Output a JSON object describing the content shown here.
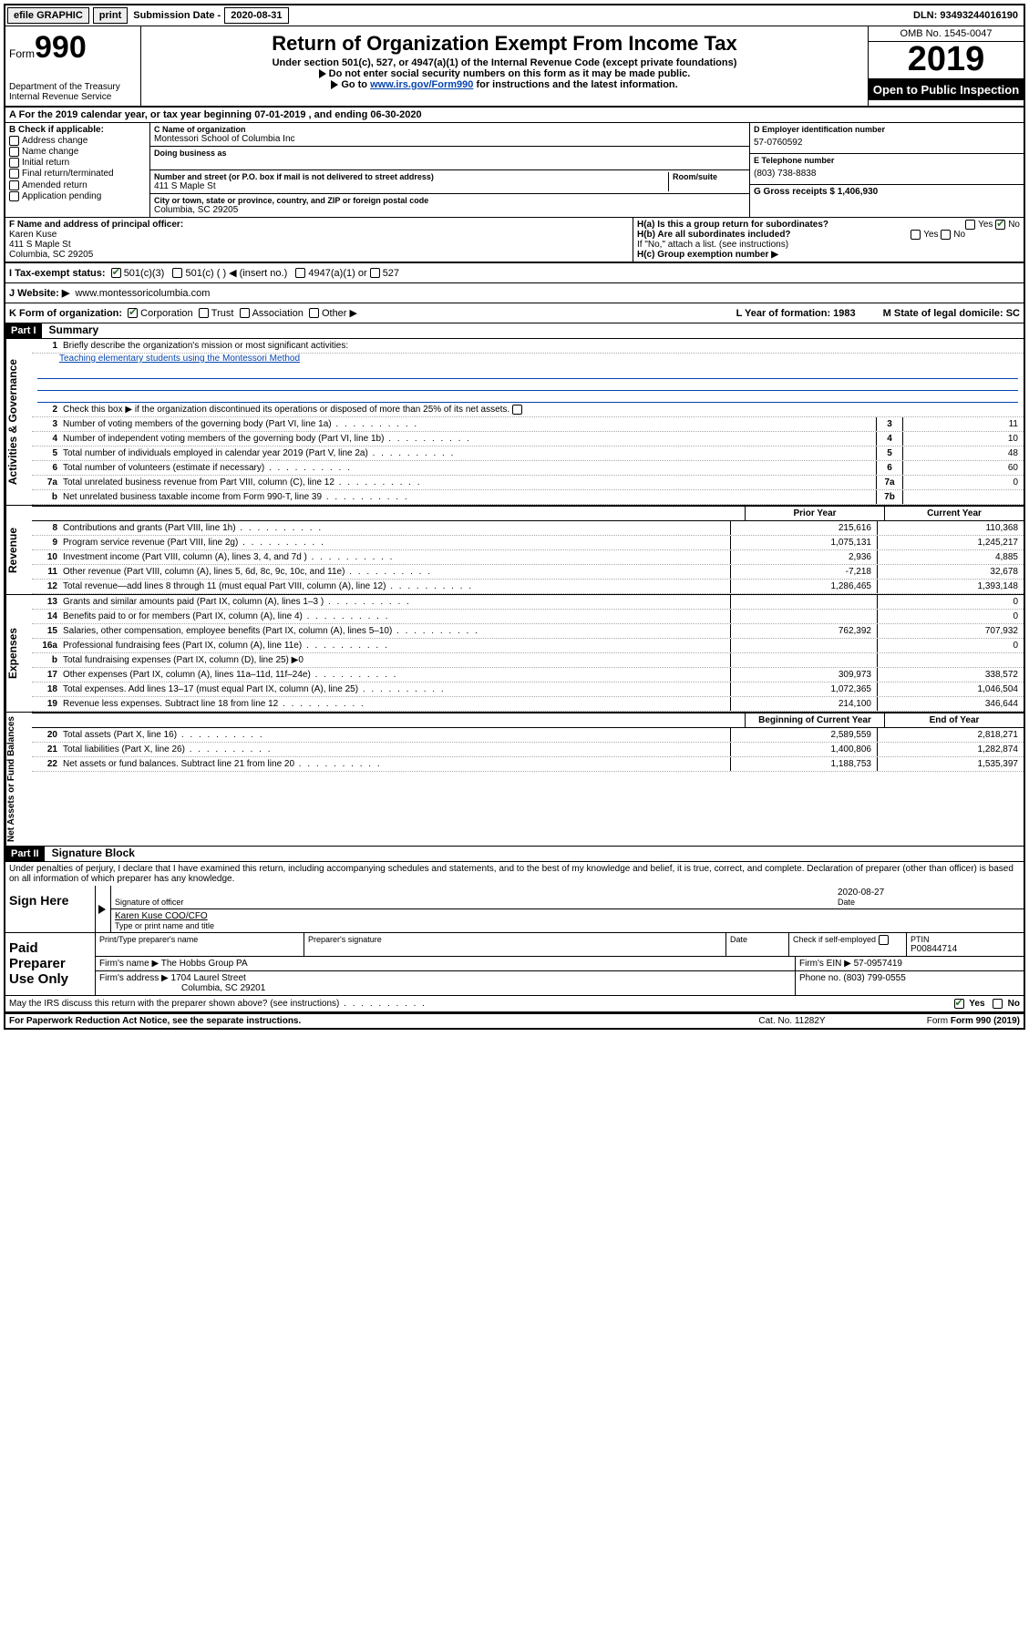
{
  "topbar": {
    "efile": "efile GRAPHIC",
    "print": "print",
    "subDateLabel": "Submission Date - ",
    "subDate": "2020-08-31",
    "dlnLabel": "DLN: ",
    "dln": "93493244016190"
  },
  "header": {
    "formWord": "Form",
    "formNum": "990",
    "dept": "Department of the Treasury\nInternal Revenue Service",
    "title": "Return of Organization Exempt From Income Tax",
    "sub1": "Under section 501(c), 527, or 4947(a)(1) of the Internal Revenue Code (except private foundations)",
    "sub2": "Do not enter social security numbers on this form as it may be made public.",
    "sub3pre": "Go to ",
    "sub3link": "www.irs.gov/Form990",
    "sub3post": " for instructions and the latest information.",
    "omb": "OMB No. 1545-0047",
    "year": "2019",
    "openpub": "Open to Public Inspection"
  },
  "rowA": "A For the 2019 calendar year, or tax year beginning 07-01-2019     , and ending 06-30-2020",
  "colB": {
    "head": "B Check if applicable:",
    "items": [
      "Address change",
      "Name change",
      "Initial return",
      "Final return/terminated",
      "Amended return",
      "Application pending"
    ]
  },
  "C": {
    "nameLab": "C Name of organization",
    "name": "Montessori School of Columbia Inc",
    "dbaLab": "Doing business as",
    "addrLab": "Number and street (or P.O. box if mail is not delivered to street address)",
    "roomLab": "Room/suite",
    "addr": "411 S Maple St",
    "cityLab": "City or town, state or province, country, and ZIP or foreign postal code",
    "city": "Columbia, SC  29205"
  },
  "D": {
    "einLab": "D Employer identification number",
    "ein": "57-0760592",
    "telLab": "E Telephone number",
    "tel": "(803) 738-8838",
    "grossLab": "G Gross receipts $ ",
    "gross": "1,406,930"
  },
  "F": {
    "lab": "F  Name and address of principal officer:",
    "name": "Karen Kuse",
    "addr1": "411 S Maple St",
    "addr2": "Columbia, SC  29205"
  },
  "H": {
    "a": "H(a)  Is this a group return for subordinates?",
    "b": "H(b)  Are all subordinates included?",
    "bnote": "If \"No,\" attach a list. (see instructions)",
    "c": "H(c)  Group exemption number ▶",
    "yes": "Yes",
    "no": "No"
  },
  "I": {
    "lab": "I    Tax-exempt status:",
    "o1": "501(c)(3)",
    "o2": "501(c) (   ) ◀ (insert no.)",
    "o3": "4947(a)(1) or",
    "o4": "527"
  },
  "J": {
    "lab": "J   Website: ▶",
    "val": "www.montessoricolumbia.com"
  },
  "K": {
    "lab": "K Form of organization:",
    "o1": "Corporation",
    "o2": "Trust",
    "o3": "Association",
    "o4": "Other ▶",
    "L": "L Year of formation: 1983",
    "M": "M State of legal domicile: SC"
  },
  "part1": {
    "label": "Part I",
    "title": "Summary",
    "l1": "Briefly describe the organization's mission or most significant activities:",
    "mission": "Teaching elementary students using the Montessori Method",
    "l2": "Check this box ▶        if the organization discontinued its operations or disposed of more than 25% of its net assets.",
    "gov": [
      {
        "n": "3",
        "d": "Number of voting members of the governing body (Part VI, line 1a)",
        "b": "3",
        "v": "11"
      },
      {
        "n": "4",
        "d": "Number of independent voting members of the governing body (Part VI, line 1b)",
        "b": "4",
        "v": "10"
      },
      {
        "n": "5",
        "d": "Total number of individuals employed in calendar year 2019 (Part V, line 2a)",
        "b": "5",
        "v": "48"
      },
      {
        "n": "6",
        "d": "Total number of volunteers (estimate if necessary)",
        "b": "6",
        "v": "60"
      },
      {
        "n": "7a",
        "d": "Total unrelated business revenue from Part VIII, column (C), line 12",
        "b": "7a",
        "v": "0"
      },
      {
        "n": "b",
        "d": "Net unrelated business taxable income from Form 990-T, line 39",
        "b": "7b",
        "v": ""
      }
    ],
    "revHead1": "Prior Year",
    "revHead2": "Current Year",
    "rev": [
      {
        "n": "8",
        "d": "Contributions and grants (Part VIII, line 1h)",
        "p": "215,616",
        "c": "110,368"
      },
      {
        "n": "9",
        "d": "Program service revenue (Part VIII, line 2g)",
        "p": "1,075,131",
        "c": "1,245,217"
      },
      {
        "n": "10",
        "d": "Investment income (Part VIII, column (A), lines 3, 4, and 7d )",
        "p": "2,936",
        "c": "4,885"
      },
      {
        "n": "11",
        "d": "Other revenue (Part VIII, column (A), lines 5, 6d, 8c, 9c, 10c, and 11e)",
        "p": "-7,218",
        "c": "32,678"
      },
      {
        "n": "12",
        "d": "Total revenue—add lines 8 through 11 (must equal Part VIII, column (A), line 12)",
        "p": "1,286,465",
        "c": "1,393,148"
      }
    ],
    "exp": [
      {
        "n": "13",
        "d": "Grants and similar amounts paid (Part IX, column (A), lines 1–3 )",
        "p": "",
        "c": "0"
      },
      {
        "n": "14",
        "d": "Benefits paid to or for members (Part IX, column (A), line 4)",
        "p": "",
        "c": "0"
      },
      {
        "n": "15",
        "d": "Salaries, other compensation, employee benefits (Part IX, column (A), lines 5–10)",
        "p": "762,392",
        "c": "707,932"
      },
      {
        "n": "16a",
        "d": "Professional fundraising fees (Part IX, column (A), line 11e)",
        "p": "",
        "c": "0"
      },
      {
        "n": "b",
        "d": "Total fundraising expenses (Part IX, column (D), line 25) ▶0",
        "p": "",
        "c": ""
      },
      {
        "n": "17",
        "d": "Other expenses (Part IX, column (A), lines 11a–11d, 11f–24e)",
        "p": "309,973",
        "c": "338,572"
      },
      {
        "n": "18",
        "d": "Total expenses. Add lines 13–17 (must equal Part IX, column (A), line 25)",
        "p": "1,072,365",
        "c": "1,046,504"
      },
      {
        "n": "19",
        "d": "Revenue less expenses. Subtract line 18 from line 12",
        "p": "214,100",
        "c": "346,644"
      }
    ],
    "naHead1": "Beginning of Current Year",
    "naHead2": "End of Year",
    "na": [
      {
        "n": "20",
        "d": "Total assets (Part X, line 16)",
        "p": "2,589,559",
        "c": "2,818,271"
      },
      {
        "n": "21",
        "d": "Total liabilities (Part X, line 26)",
        "p": "1,400,806",
        "c": "1,282,874"
      },
      {
        "n": "22",
        "d": "Net assets or fund balances. Subtract line 21 from line 20",
        "p": "1,188,753",
        "c": "1,535,397"
      }
    ],
    "vlab1": "Activities & Governance",
    "vlab2": "Revenue",
    "vlab3": "Expenses",
    "vlab4": "Net Assets or Fund Balances"
  },
  "part2": {
    "label": "Part II",
    "title": "Signature Block",
    "decl": "Under penalties of perjury, I declare that I have examined this return, including accompanying schedules and statements, and to the best of my knowledge and belief, it is true, correct, and complete. Declaration of preparer (other than officer) is based on all information of which preparer has any knowledge.",
    "signHere": "Sign Here",
    "sigOff": "Signature of officer",
    "date": "2020-08-27",
    "dateLab": "Date",
    "typed": "Karen Kuse  COO/CFO",
    "typedLab": "Type or print name and title",
    "paid": "Paid Preparer Use Only",
    "h1": "Print/Type preparer's name",
    "h2": "Preparer's signature",
    "h3": "Date",
    "h4pre": "Check        if self-employed",
    "h5": "PTIN",
    "ptin": "P00844714",
    "firmName": "Firm's name     ▶ The Hobbs Group PA",
    "firmEin": "Firm's EIN ▶ 57-0957419",
    "firmAddr": "Firm's address ▶ 1704 Laurel Street",
    "firmCity": "Columbia, SC  29201",
    "phone": "Phone no. (803) 799-0555",
    "discuss": "May the IRS discuss this return with the preparer shown above? (see instructions)",
    "yes": "Yes",
    "no": "No"
  },
  "footer": {
    "pra": "For Paperwork Reduction Act Notice, see the separate instructions.",
    "cat": "Cat. No. 11282Y",
    "form": "Form 990 (2019)"
  }
}
